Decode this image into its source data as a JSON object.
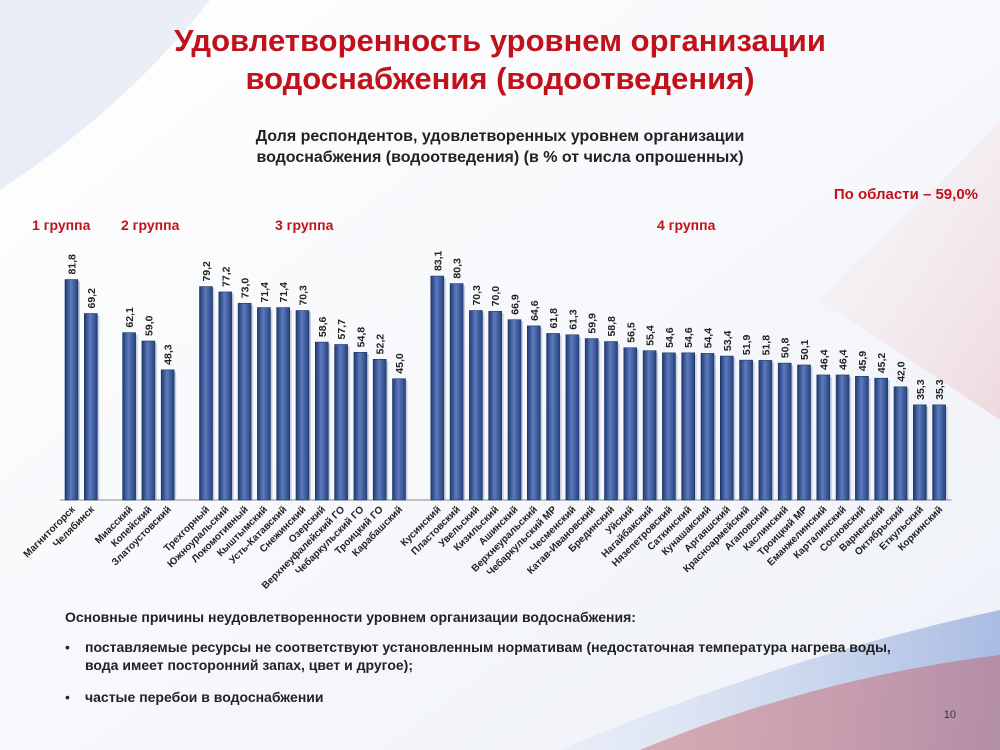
{
  "header": {
    "title_line1": "Удовлетворенность уровнем организации",
    "title_line2": "водоснабжения (водоотведения)",
    "subtitle_line1": "Доля респондентов, удовлетворенных уровнем организации",
    "subtitle_line2": "водоснабжения (водоотведения) (в % от числа опрошенных)",
    "region_total": "По области – 59,0%"
  },
  "groups": {
    "g1": "1 группа",
    "g2": "2 группа",
    "g3": "3 группа",
    "g4": "4 группа"
  },
  "colors": {
    "title": "#c1121b",
    "bar": "#2f4f8f",
    "bar_highlight": "#5d7bbd"
  },
  "chart_data": {
    "type": "bar",
    "title": "Доля респондентов, удовлетворенных уровнем организации водоснабжения (водоотведения) (в % от числа опрошенных)",
    "categories": [
      "Магнитогорск",
      "Челябинск",
      "Миасский",
      "Копейский",
      "Златоустовский",
      "Трехгорный",
      "Южноуральский",
      "Локомотивный",
      "Кыштымский",
      "Усть-Катавский",
      "Снежинский",
      "Озерский",
      "Верхнеуфалейский ГО",
      "Чебаркульский ГО",
      "Троицкий ГО",
      "Карабашский",
      "Кусинский",
      "Пластовский",
      "Увельский",
      "Кизильский",
      "Ашинский",
      "Верхнеуральский",
      "Чебаркульский МР",
      "Чесменский",
      "Катав-Ивановский",
      "Брединский",
      "Уйский",
      "Нагайбакский",
      "Нязепетровский",
      "Саткинский",
      "Кунашакский",
      "Аргаяшский",
      "Красноармейский",
      "Агаповский",
      "Каслинский",
      "Троицкий МР",
      "Еманжелинский",
      "Карталинский",
      "Сосновский",
      "Варненский",
      "Октябрьский",
      "Еткульский",
      "Коркинский"
    ],
    "groups": [
      {
        "label": "1 группа",
        "count": 2
      },
      {
        "label": "2 группа",
        "count": 3
      },
      {
        "label": "3 группа",
        "count": 11
      },
      {
        "label": "4 группа",
        "count": 27
      }
    ],
    "values": [
      81.8,
      69.2,
      62.1,
      59.0,
      48.3,
      79.2,
      77.2,
      73.0,
      71.4,
      71.4,
      70.3,
      58.6,
      57.7,
      54.8,
      52.2,
      45.0,
      83.1,
      80.3,
      70.3,
      70.0,
      66.9,
      64.6,
      61.8,
      61.3,
      59.9,
      58.8,
      56.5,
      55.4,
      54.6,
      54.6,
      54.4,
      53.4,
      51.9,
      51.8,
      50.8,
      50.1,
      46.4,
      46.4,
      45.9,
      45.2,
      42.0,
      35.3,
      35.3
    ],
    "value_labels": [
      "81,8",
      "69,2",
      "62,1",
      "59,0",
      "48,3",
      "79,2",
      "77,2",
      "73,0",
      "71,4",
      "71,4",
      "70,3",
      "58,6",
      "57,7",
      "54,8",
      "52,2",
      "45,0",
      "83,1",
      "80,3",
      "70,3",
      "70,0",
      "66,9",
      "64,6",
      "61,8",
      "61,3",
      "59,9",
      "58,8",
      "56,5",
      "55,4",
      "54,6",
      "54,6",
      "54,4",
      "53,4",
      "51,9",
      "51,8",
      "50,8",
      "50,1",
      "46,4",
      "46,4",
      "45,9",
      "45,2",
      "42,0",
      "35,3",
      "35,3"
    ],
    "ylim": [
      0,
      100
    ],
    "grid": false,
    "legend": "none"
  },
  "reasons": {
    "heading": "Основные причины неудовлетворенности уровнем организации водоснабжения:",
    "bullet": "•",
    "items": [
      "поставляемые ресурсы не соответствуют установленным нормативам (недостаточная температура нагрева воды, вода имеет посторонний запах, цвет и другое);",
      "частые перебои в водоснабжении"
    ]
  },
  "footer": {
    "page_number": "10"
  }
}
